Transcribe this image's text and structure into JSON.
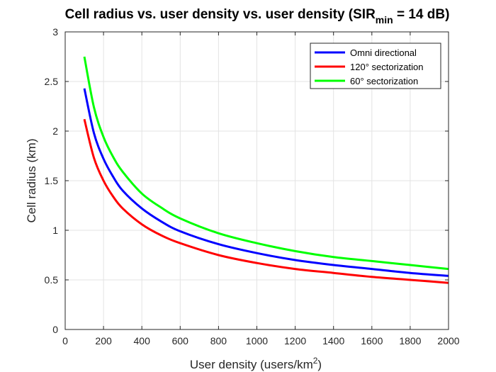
{
  "chart_data": {
    "type": "line",
    "title": {
      "main": "Cell radius vs. user density vs. user density (SIR",
      "sub": "min",
      "end": " = 14 dB)"
    },
    "xlabel": {
      "main": "User density (users/km",
      "sup": "2",
      "end": ")"
    },
    "ylabel": "Cell radius (km)",
    "xlim": [
      0,
      2000
    ],
    "ylim": [
      0,
      3
    ],
    "xticks": [
      "0",
      "200",
      "400",
      "600",
      "800",
      "1000",
      "1200",
      "1400",
      "1600",
      "1800",
      "2000"
    ],
    "yticks": [
      "0",
      "0.5",
      "1",
      "1.5",
      "2",
      "2.5",
      "3"
    ],
    "grid": true,
    "legend_position": "top-right",
    "x": [
      100,
      150,
      200,
      250,
      300,
      400,
      500,
      600,
      800,
      1000,
      1200,
      1400,
      1600,
      1800,
      2000
    ],
    "series": [
      {
        "name": "Omni directional",
        "color": "#0000ff",
        "values": [
          2.43,
          1.98,
          1.72,
          1.54,
          1.4,
          1.22,
          1.09,
          0.99,
          0.86,
          0.77,
          0.7,
          0.65,
          0.61,
          0.57,
          0.54
        ]
      },
      {
        "name": "120° sectorization",
        "color": "#ff0000",
        "values": [
          2.12,
          1.73,
          1.5,
          1.34,
          1.22,
          1.06,
          0.95,
          0.87,
          0.75,
          0.67,
          0.61,
          0.57,
          0.53,
          0.5,
          0.47
        ]
      },
      {
        "name": "60° sectorization",
        "color": "#00ff00",
        "values": [
          2.75,
          2.24,
          1.94,
          1.74,
          1.59,
          1.37,
          1.23,
          1.12,
          0.97,
          0.87,
          0.79,
          0.73,
          0.69,
          0.65,
          0.61
        ]
      }
    ]
  }
}
